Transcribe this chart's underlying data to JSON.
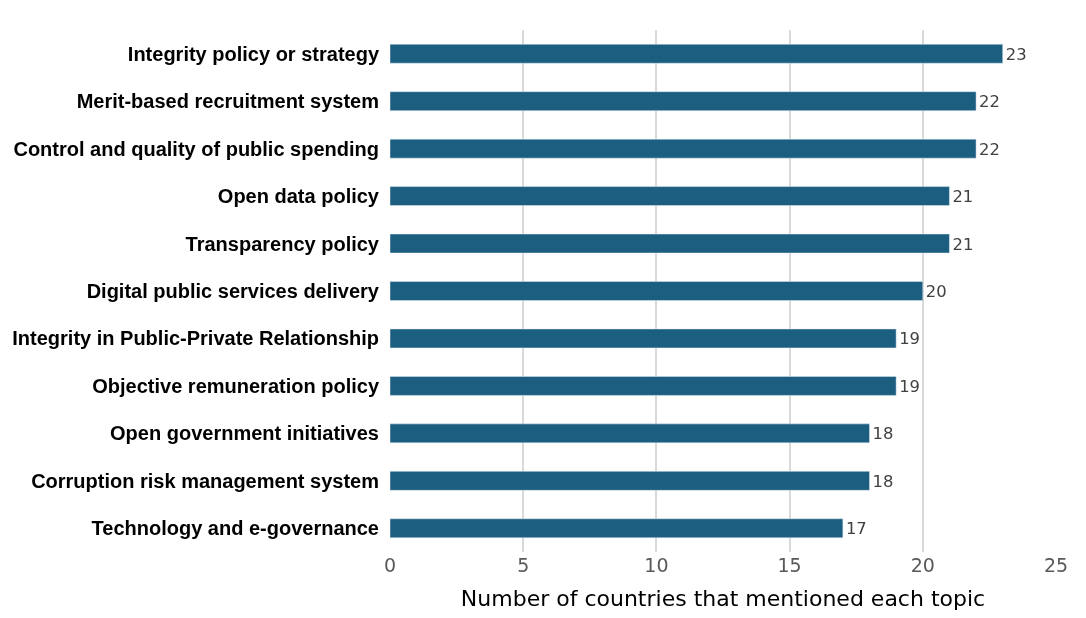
{
  "chart_data": {
    "type": "bar",
    "orientation": "horizontal",
    "xlabel": "Number of countries that mentioned each topic",
    "categories": [
      "Integrity policy or strategy",
      "Merit-based recruitment system",
      "Control and quality of public spending",
      "Open data policy",
      "Transparency policy",
      "Digital public services delivery",
      "Integrity in Public-Private Relationship",
      "Objective remuneration policy",
      "Open government initiatives",
      "Corruption risk management system",
      "Technology and e-governance"
    ],
    "values": [
      23,
      22,
      22,
      21,
      21,
      20,
      19,
      19,
      18,
      18,
      17
    ],
    "color": "#1b5e80",
    "xlim": [
      0,
      25
    ],
    "xticks": [
      0,
      5,
      10,
      15,
      20,
      25
    ],
    "grid": "x",
    "data_labels": true,
    "legend": false
  }
}
